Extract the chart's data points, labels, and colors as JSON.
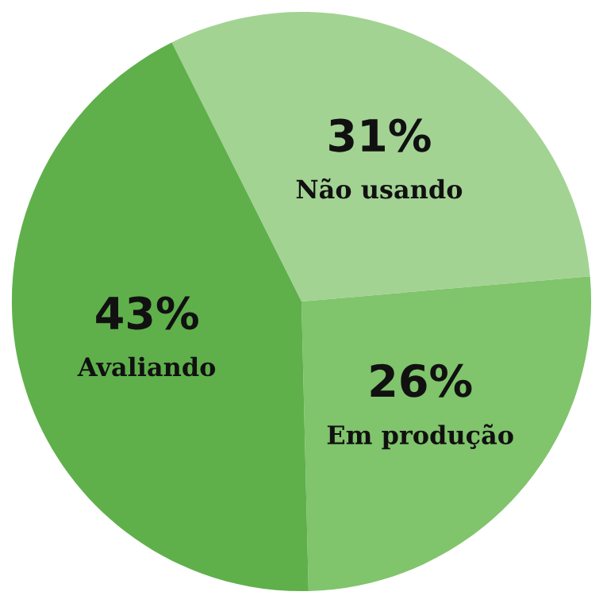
{
  "chart_data": {
    "type": "pie",
    "categories": [
      "Não usando",
      "Em produção",
      "Avaliando"
    ],
    "values": [
      31,
      26,
      43
    ],
    "colors": [
      "#a3d393",
      "#80c46c",
      "#5fb04b"
    ],
    "value_labels": [
      "31%",
      "26%",
      "43%"
    ],
    "legend": false
  }
}
